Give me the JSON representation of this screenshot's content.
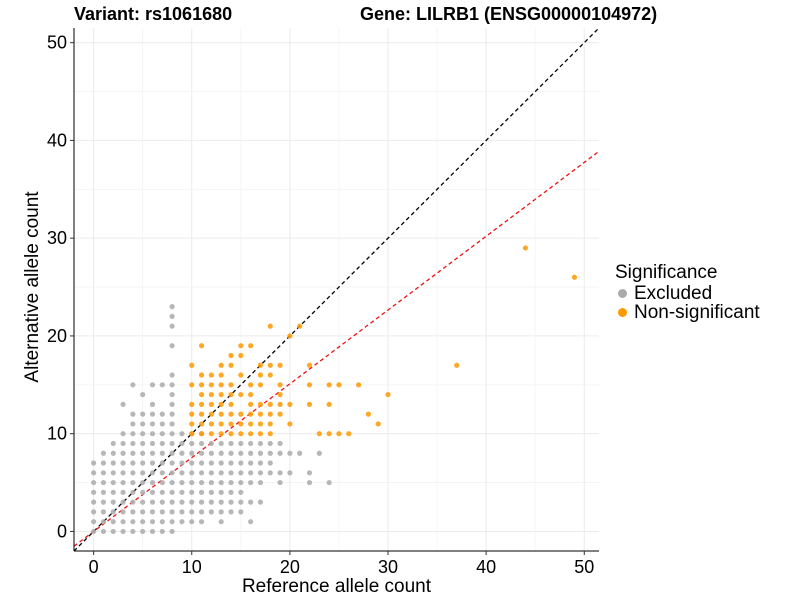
{
  "chart_data": {
    "type": "scatter",
    "title_left": "Variant: rs1061680",
    "title_right": "Gene: LILRB1 (ENSG00000104972)",
    "xlabel": "Reference allele count",
    "ylabel": "Alternative allele count",
    "xlim": [
      -2,
      51.5
    ],
    "ylim": [
      -2,
      51.5
    ],
    "xticks": [
      0,
      10,
      20,
      30,
      40,
      50
    ],
    "yticks": [
      0,
      10,
      20,
      30,
      40,
      50
    ],
    "grid": true,
    "legend": {
      "title": "Significance",
      "placement": "right",
      "entries": [
        {
          "label": "Excluded",
          "color": "#aaaaaa"
        },
        {
          "label": "Non-significant",
          "color": "#ff9900"
        }
      ]
    },
    "reference_lines": [
      {
        "name": "y = x",
        "slope": 1,
        "intercept": 0,
        "color": "#000000",
        "style": "dashed"
      },
      {
        "name": "fit",
        "slope": 0.755,
        "intercept": 0.0,
        "color": "#ee1111",
        "style": "dashed"
      }
    ],
    "series": [
      {
        "name": "Excluded",
        "color": "#aaaaaa",
        "points": [
          [
            0,
            0
          ],
          [
            0,
            1
          ],
          [
            0,
            2
          ],
          [
            0,
            3
          ],
          [
            0,
            4
          ],
          [
            0,
            5
          ],
          [
            0,
            6
          ],
          [
            0,
            7
          ],
          [
            1,
            0
          ],
          [
            1,
            1
          ],
          [
            1,
            2
          ],
          [
            1,
            3
          ],
          [
            1,
            4
          ],
          [
            1,
            5
          ],
          [
            1,
            6
          ],
          [
            1,
            7
          ],
          [
            1,
            8
          ],
          [
            2,
            0
          ],
          [
            2,
            1
          ],
          [
            2,
            2
          ],
          [
            2,
            3
          ],
          [
            2,
            4
          ],
          [
            2,
            5
          ],
          [
            2,
            6
          ],
          [
            2,
            7
          ],
          [
            2,
            8
          ],
          [
            2,
            9
          ],
          [
            3,
            0
          ],
          [
            3,
            1
          ],
          [
            3,
            2
          ],
          [
            3,
            3
          ],
          [
            3,
            4
          ],
          [
            3,
            5
          ],
          [
            3,
            6
          ],
          [
            3,
            7
          ],
          [
            3,
            8
          ],
          [
            3,
            9
          ],
          [
            3,
            10
          ],
          [
            3,
            13
          ],
          [
            4,
            0
          ],
          [
            4,
            1
          ],
          [
            4,
            2
          ],
          [
            4,
            3
          ],
          [
            4,
            4
          ],
          [
            4,
            5
          ],
          [
            4,
            6
          ],
          [
            4,
            7
          ],
          [
            4,
            8
          ],
          [
            4,
            9
          ],
          [
            4,
            10
          ],
          [
            4,
            11
          ],
          [
            4,
            12
          ],
          [
            4,
            15
          ],
          [
            5,
            0
          ],
          [
            5,
            1
          ],
          [
            5,
            2
          ],
          [
            5,
            3
          ],
          [
            5,
            4
          ],
          [
            5,
            5
          ],
          [
            5,
            6
          ],
          [
            5,
            7
          ],
          [
            5,
            8
          ],
          [
            5,
            9
          ],
          [
            5,
            10
          ],
          [
            5,
            11
          ],
          [
            5,
            12
          ],
          [
            5,
            14
          ],
          [
            6,
            0
          ],
          [
            6,
            1
          ],
          [
            6,
            2
          ],
          [
            6,
            3
          ],
          [
            6,
            4
          ],
          [
            6,
            5
          ],
          [
            6,
            6
          ],
          [
            6,
            7
          ],
          [
            6,
            8
          ],
          [
            6,
            9
          ],
          [
            6,
            10
          ],
          [
            6,
            11
          ],
          [
            6,
            12
          ],
          [
            6,
            13
          ],
          [
            6,
            15
          ],
          [
            7,
            0
          ],
          [
            7,
            1
          ],
          [
            7,
            2
          ],
          [
            7,
            3
          ],
          [
            7,
            4
          ],
          [
            7,
            5
          ],
          [
            7,
            6
          ],
          [
            7,
            7
          ],
          [
            7,
            8
          ],
          [
            7,
            9
          ],
          [
            7,
            10
          ],
          [
            7,
            11
          ],
          [
            7,
            12
          ],
          [
            7,
            15
          ],
          [
            8,
            0
          ],
          [
            8,
            1
          ],
          [
            8,
            2
          ],
          [
            8,
            3
          ],
          [
            8,
            4
          ],
          [
            8,
            5
          ],
          [
            8,
            6
          ],
          [
            8,
            7
          ],
          [
            8,
            8
          ],
          [
            8,
            9
          ],
          [
            8,
            10
          ],
          [
            8,
            11
          ],
          [
            8,
            12
          ],
          [
            8,
            13
          ],
          [
            8,
            14
          ],
          [
            8,
            15
          ],
          [
            8,
            16
          ],
          [
            8,
            19
          ],
          [
            8,
            21
          ],
          [
            8,
            22
          ],
          [
            8,
            23
          ],
          [
            9,
            1
          ],
          [
            9,
            2
          ],
          [
            9,
            3
          ],
          [
            9,
            4
          ],
          [
            9,
            5
          ],
          [
            9,
            6
          ],
          [
            9,
            7
          ],
          [
            9,
            8
          ],
          [
            9,
            9
          ],
          [
            9,
            10
          ],
          [
            10,
            1
          ],
          [
            10,
            2
          ],
          [
            10,
            3
          ],
          [
            10,
            4
          ],
          [
            10,
            5
          ],
          [
            10,
            6
          ],
          [
            10,
            7
          ],
          [
            10,
            8
          ],
          [
            10,
            9
          ],
          [
            10,
            10
          ],
          [
            11,
            1
          ],
          [
            11,
            2
          ],
          [
            11,
            3
          ],
          [
            11,
            4
          ],
          [
            11,
            5
          ],
          [
            11,
            6
          ],
          [
            11,
            7
          ],
          [
            11,
            8
          ],
          [
            11,
            9
          ],
          [
            11,
            10
          ],
          [
            12,
            2
          ],
          [
            12,
            3
          ],
          [
            12,
            4
          ],
          [
            12,
            5
          ],
          [
            12,
            6
          ],
          [
            12,
            7
          ],
          [
            12,
            8
          ],
          [
            12,
            9
          ],
          [
            13,
            1
          ],
          [
            13,
            2
          ],
          [
            13,
            3
          ],
          [
            13,
            4
          ],
          [
            13,
            5
          ],
          [
            13,
            6
          ],
          [
            13,
            7
          ],
          [
            13,
            8
          ],
          [
            13,
            9
          ],
          [
            14,
            2
          ],
          [
            14,
            3
          ],
          [
            14,
            4
          ],
          [
            14,
            5
          ],
          [
            14,
            6
          ],
          [
            14,
            7
          ],
          [
            14,
            8
          ],
          [
            14,
            9
          ],
          [
            15,
            2
          ],
          [
            15,
            3
          ],
          [
            15,
            4
          ],
          [
            15,
            5
          ],
          [
            15,
            6
          ],
          [
            15,
            7
          ],
          [
            15,
            8
          ],
          [
            15,
            9
          ],
          [
            16,
            1
          ],
          [
            16,
            3
          ],
          [
            16,
            5
          ],
          [
            16,
            6
          ],
          [
            16,
            7
          ],
          [
            16,
            8
          ],
          [
            16,
            9
          ],
          [
            17,
            3
          ],
          [
            17,
            5
          ],
          [
            17,
            6
          ],
          [
            17,
            7
          ],
          [
            17,
            8
          ],
          [
            17,
            9
          ],
          [
            18,
            6
          ],
          [
            18,
            7
          ],
          [
            18,
            8
          ],
          [
            18,
            9
          ],
          [
            19,
            5
          ],
          [
            19,
            6
          ],
          [
            19,
            8
          ],
          [
            19,
            9
          ],
          [
            20,
            6
          ],
          [
            20,
            8
          ],
          [
            21,
            8
          ],
          [
            22,
            5
          ],
          [
            22,
            6
          ],
          [
            23,
            8
          ],
          [
            24,
            5
          ]
        ]
      },
      {
        "name": "Non-significant",
        "color": "#ff9900",
        "points": [
          [
            10,
            10
          ],
          [
            10,
            11
          ],
          [
            10,
            12
          ],
          [
            10,
            13
          ],
          [
            10,
            15
          ],
          [
            10,
            17
          ],
          [
            11,
            10
          ],
          [
            11,
            11
          ],
          [
            11,
            12
          ],
          [
            11,
            13
          ],
          [
            11,
            14
          ],
          [
            11,
            15
          ],
          [
            11,
            16
          ],
          [
            11,
            19
          ],
          [
            12,
            10
          ],
          [
            12,
            11
          ],
          [
            12,
            12
          ],
          [
            12,
            13
          ],
          [
            12,
            14
          ],
          [
            12,
            15
          ],
          [
            12,
            16
          ],
          [
            13,
            10
          ],
          [
            13,
            11
          ],
          [
            13,
            12
          ],
          [
            13,
            13
          ],
          [
            13,
            14
          ],
          [
            13,
            15
          ],
          [
            13,
            16
          ],
          [
            13,
            17
          ],
          [
            14,
            10
          ],
          [
            14,
            11
          ],
          [
            14,
            12
          ],
          [
            14,
            13
          ],
          [
            14,
            14
          ],
          [
            14,
            15
          ],
          [
            14,
            17
          ],
          [
            14,
            18
          ],
          [
            15,
            10
          ],
          [
            15,
            11
          ],
          [
            15,
            12
          ],
          [
            15,
            14
          ],
          [
            15,
            16
          ],
          [
            15,
            18
          ],
          [
            15,
            19
          ],
          [
            16,
            10
          ],
          [
            16,
            11
          ],
          [
            16,
            12
          ],
          [
            16,
            13
          ],
          [
            16,
            14
          ],
          [
            16,
            15
          ],
          [
            16,
            19
          ],
          [
            17,
            10
          ],
          [
            17,
            11
          ],
          [
            17,
            12
          ],
          [
            17,
            13
          ],
          [
            17,
            15
          ],
          [
            17,
            16
          ],
          [
            17,
            17
          ],
          [
            18,
            10
          ],
          [
            18,
            11
          ],
          [
            18,
            12
          ],
          [
            18,
            13
          ],
          [
            18,
            16
          ],
          [
            18,
            17
          ],
          [
            18,
            21
          ],
          [
            19,
            12
          ],
          [
            19,
            13
          ],
          [
            19,
            14
          ],
          [
            19,
            15
          ],
          [
            19,
            17
          ],
          [
            20,
            11
          ],
          [
            20,
            13
          ],
          [
            20,
            20
          ],
          [
            21,
            21
          ],
          [
            22,
            13
          ],
          [
            22,
            15
          ],
          [
            22,
            17
          ],
          [
            23,
            10
          ],
          [
            24,
            10
          ],
          [
            24,
            13
          ],
          [
            24,
            15
          ],
          [
            25,
            10
          ],
          [
            25,
            15
          ],
          [
            26,
            10
          ],
          [
            27,
            15
          ],
          [
            28,
            12
          ],
          [
            29,
            11
          ],
          [
            30,
            14
          ],
          [
            37,
            17
          ],
          [
            44,
            29
          ],
          [
            49,
            26
          ]
        ]
      }
    ]
  }
}
